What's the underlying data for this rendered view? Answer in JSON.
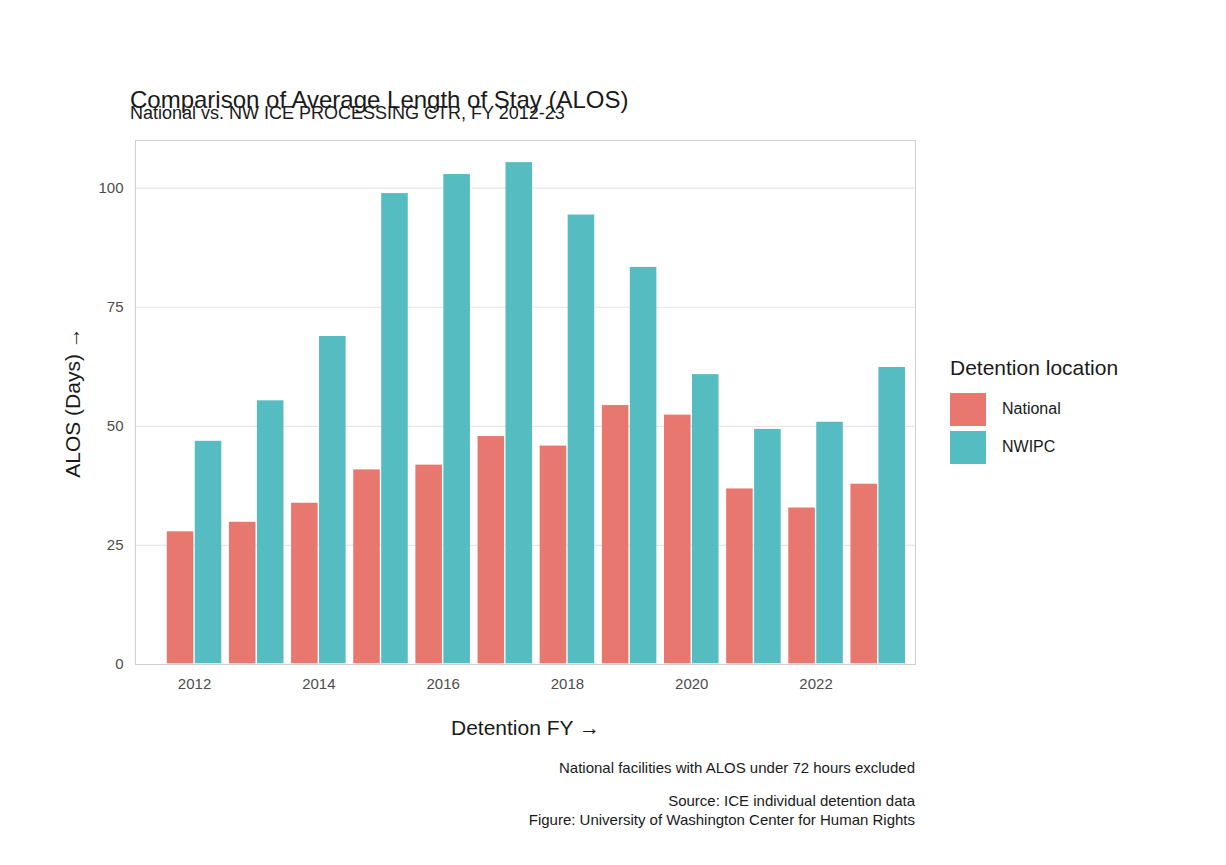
{
  "chart_data": {
    "type": "bar",
    "title": "Comparison of Average Length of Stay (ALOS)",
    "subtitle": "National vs. NW ICE PROCESSING CTR, FY 2012-23",
    "x_label": "Detention FY",
    "y_label": "ALOS (Days)",
    "legend_title": "Detention location",
    "caption": [
      "National facilities with ALOS under 72 hours excluded",
      "Source: ICE individual detention data",
      "Figure: University of Washington Center for Human Rights"
    ],
    "categories": [
      "2012",
      null,
      "2014",
      null,
      "2016",
      null,
      "2018",
      null,
      "2020",
      null,
      "2022",
      null
    ],
    "series": [
      {
        "name": "National",
        "color": "#E8776F",
        "values": [
          28,
          30,
          34,
          41,
          42,
          48,
          46,
          54.5,
          52.5,
          37,
          33,
          38
        ]
      },
      {
        "name": "NWIPC",
        "color": "#55BCC2",
        "values": [
          47,
          55.5,
          69,
          99,
          103,
          105.5,
          94.5,
          83.5,
          61,
          49.5,
          51,
          62.5
        ]
      }
    ],
    "ylim": [
      0,
      110
    ],
    "yticks": [
      0,
      25,
      50,
      75,
      100
    ],
    "grid": true,
    "legend": "right"
  }
}
